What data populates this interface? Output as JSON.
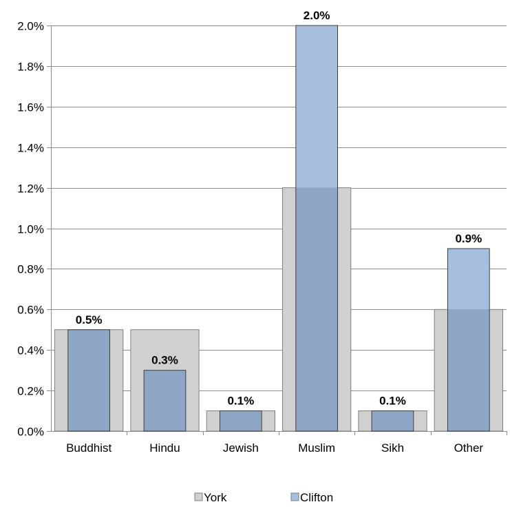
{
  "chart_data": {
    "type": "bar",
    "title": "",
    "xlabel": "",
    "ylabel": "",
    "categories": [
      "Buddhist",
      "Hindu",
      "Jewish",
      "Muslim",
      "Sikh",
      "Other"
    ],
    "series": [
      {
        "name": "York",
        "values": [
          0.5,
          0.5,
          0.1,
          1.2,
          0.1,
          0.6
        ],
        "color": "#d0d0d0"
      },
      {
        "name": "Clifton",
        "values": [
          0.5,
          0.3,
          0.1,
          2.0,
          0.1,
          0.9
        ],
        "color": "#a7bfdf",
        "overlap_color": "#8ea6c6"
      }
    ],
    "data_labels": [
      "0.5%",
      "0.3%",
      "0.1%",
      "2.0%",
      "0.1%",
      "0.9%"
    ],
    "ylim": [
      0,
      2.0
    ],
    "yticks": [
      0.0,
      0.2,
      0.4,
      0.6,
      0.8,
      1.0,
      1.2,
      1.4,
      1.6,
      1.8,
      2.0
    ],
    "ytick_labels": [
      "0.0%",
      "0.2%",
      "0.4%",
      "0.6%",
      "0.8%",
      "1.0%",
      "1.2%",
      "1.4%",
      "1.6%",
      "1.8%",
      "2.0%"
    ],
    "grid": true,
    "legend_position": "bottom"
  }
}
